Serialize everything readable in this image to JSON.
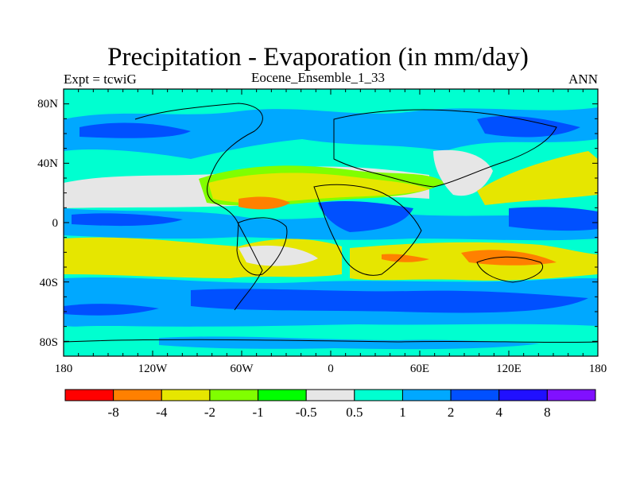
{
  "title": "Precipitation - Evaporation (in mm/day)",
  "subtitle_left": "Expt = tcwiG",
  "subtitle_center": "Eocene_Ensemble_1_33",
  "subtitle_right": "ANN",
  "lat_labels": [
    "80N",
    "40N",
    "0",
    "40S",
    "80S"
  ],
  "lon_labels": [
    "180",
    "120W",
    "60W",
    "0",
    "60E",
    "120E",
    "180"
  ],
  "colorbar": {
    "labels": [
      "-8",
      "-4",
      "-2",
      "-1",
      "-0.5",
      "0.5",
      "1",
      "2",
      "4",
      "8"
    ],
    "colors": [
      "#ff0000",
      "#ff8000",
      "#e6e600",
      "#80ff00",
      "#00ff00",
      "#e6e6e6",
      "#00ffd0",
      "#00a8ff",
      "#0050ff",
      "#2010ff",
      "#8010ff"
    ]
  }
}
